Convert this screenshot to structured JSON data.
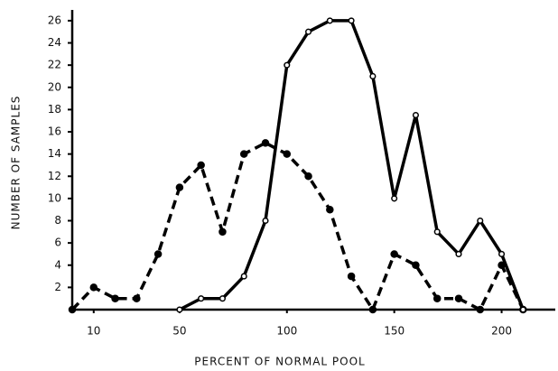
{
  "chart_data": {
    "type": "line",
    "xlabel": "PERCENT OF NORMAL POOL",
    "ylabel": "NUMBER OF SAMPLES",
    "x": [
      0,
      10,
      20,
      30,
      40,
      50,
      60,
      70,
      80,
      90,
      100,
      110,
      120,
      130,
      140,
      150,
      160,
      170,
      180,
      190,
      200,
      210
    ],
    "series": [
      {
        "color": "#000000",
        "dash": true,
        "marker": "filled",
        "values": [
          0,
          2,
          1,
          1,
          5,
          11,
          13,
          7,
          14,
          15,
          14,
          12,
          9,
          3,
          0,
          5,
          4,
          1,
          1,
          0,
          4,
          0
        ]
      },
      {
        "color": "#000000",
        "dash": false,
        "marker": "open",
        "values": [
          null,
          null,
          null,
          null,
          null,
          0,
          1,
          1,
          3,
          8,
          22,
          25,
          26,
          26,
          21,
          10,
          17.5,
          7,
          5,
          8,
          5,
          0
        ]
      }
    ],
    "xlim": [
      0,
      225
    ],
    "ylim": [
      0,
      27
    ],
    "xticks": [
      10,
      50,
      100,
      150,
      200
    ],
    "yticks": [
      2,
      4,
      6,
      8,
      10,
      12,
      14,
      16,
      18,
      20,
      22,
      24,
      26
    ]
  }
}
